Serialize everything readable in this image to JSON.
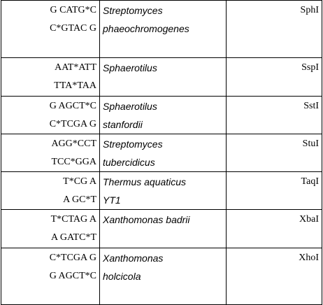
{
  "rows": [
    {
      "seq_top": "G CATG*C",
      "seq_bottom": "C*GTAC G",
      "organism_line1": "Streptomyces",
      "organism_line2": "phaeochromogenes",
      "enzyme": "SphI"
    },
    {
      "seq_top": "AAT*ATT",
      "seq_bottom": "TTA*TAA",
      "organism_line1": "Sphaerotilus",
      "organism_line2": "",
      "enzyme": "SspI"
    },
    {
      "seq_top": "G AGCT*C",
      "seq_bottom": "C*TCGA G",
      "organism_line1": "Sphaerotilus",
      "organism_line2": "stanfordii",
      "enzyme": "SstI"
    },
    {
      "seq_top": "AGG*CCT",
      "seq_bottom": "TCC*GGA",
      "organism_line1": "Streptomyces",
      "organism_line2": "tubercidicus",
      "enzyme": "StuI"
    },
    {
      "seq_top": "T*CG A",
      "seq_bottom": "A GC*T",
      "organism_line1": "Thermus aquaticus",
      "organism_line2": "YT1",
      "enzyme": "TaqI"
    },
    {
      "seq_top": "T*CTAG A",
      "seq_bottom": "A GATC*T",
      "organism_line1": "Xanthomonas badrii",
      "organism_line2": "",
      "enzyme": "XbaI"
    },
    {
      "seq_top": "C*TCGA G",
      "seq_bottom": "G AGCT*C",
      "organism_line1": "Xanthomonas",
      "organism_line2": "holcicola",
      "enzyme": "XhoI"
    }
  ]
}
